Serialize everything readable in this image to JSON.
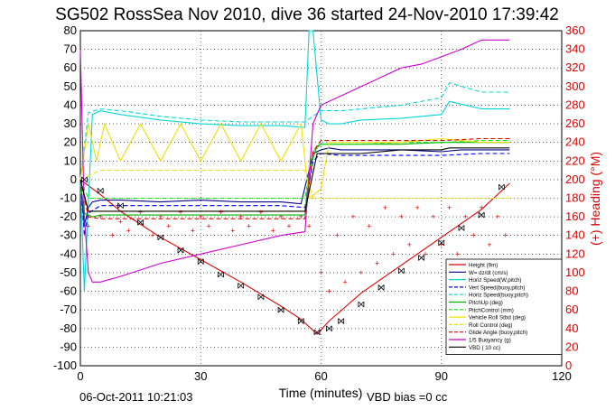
{
  "figure": {
    "title": "SG502 RossSea Nov 2010, dive 36 started 24-Nov-2010 17:39:42",
    "footer_date": "06-Oct-2011 10:21:03",
    "footer_note": "VBD bias =0 cc"
  },
  "chart_data": {
    "type": "line",
    "title": "SG502 RossSea Nov 2010, dive 36 started 24-Nov-2010 17:39:42",
    "xlabel": "Time (minutes)",
    "ylabel": "",
    "y2label": "(+) Heading (°M)",
    "xlim": [
      0,
      120
    ],
    "ylim": [
      -100,
      80
    ],
    "y2lim": [
      0,
      360
    ],
    "xticks": [
      0,
      30,
      60,
      90,
      120
    ],
    "yticks": [
      80,
      70,
      60,
      50,
      40,
      30,
      20,
      10,
      0,
      -10,
      -20,
      -30,
      -40,
      -50,
      -60,
      -70,
      -80,
      -90,
      -100
    ],
    "y2ticks": [
      360,
      340,
      320,
      300,
      280,
      260,
      240,
      220,
      200,
      180,
      160,
      140,
      120,
      100,
      80,
      60,
      40,
      20,
      0
    ],
    "grid": true,
    "legend_position": "bottom-right",
    "series": [
      {
        "name": "Height (9m)",
        "color": "#e00000",
        "style": "solid",
        "x": [
          0,
          5,
          10,
          20,
          30,
          40,
          50,
          55,
          59,
          62,
          70,
          80,
          90,
          100,
          107
        ],
        "y": [
          0,
          -8,
          -17,
          -31,
          -43,
          -55,
          -68,
          -75,
          -83,
          -76,
          -61,
          -46,
          -31,
          -16,
          -2
        ]
      },
      {
        "name": "W= dz/dt (cm/s)",
        "color": "#00008b",
        "style": "solid",
        "x": [
          0,
          1,
          2,
          3,
          5,
          10,
          20,
          30,
          40,
          50,
          55,
          57,
          58,
          60,
          62,
          65,
          70,
          80,
          90,
          95,
          100,
          107
        ],
        "y": [
          0,
          -25,
          -15,
          -12,
          -11,
          -11,
          -12,
          -11,
          -12,
          -12,
          -13,
          5,
          14,
          16,
          17,
          16,
          16,
          16,
          15,
          16,
          16,
          16
        ]
      },
      {
        "name": "Horiz Speed(W,pitch)",
        "color": "#00d8d8",
        "style": "solid",
        "x": [
          0,
          1,
          3,
          5,
          10,
          20,
          30,
          40,
          50,
          56,
          57,
          58,
          60,
          62,
          65,
          70,
          80,
          90,
          92,
          100,
          107
        ],
        "y": [
          0,
          -60,
          35,
          37,
          35,
          32,
          30,
          29,
          29,
          28,
          80,
          80,
          32,
          30,
          30,
          32,
          33,
          35,
          42,
          38,
          38
        ]
      },
      {
        "name": "Vert Speed(buoy,pitch)",
        "color": "#0000ff",
        "style": "dashed",
        "x": [
          0,
          1,
          2,
          5,
          10,
          20,
          30,
          40,
          50,
          56,
          58,
          60,
          65,
          70,
          80,
          90,
          100,
          107
        ],
        "y": [
          0,
          -30,
          -18,
          -14,
          -14,
          -14,
          -14,
          -14,
          -14,
          -15,
          10,
          14,
          13,
          13,
          13,
          13,
          14,
          14
        ]
      },
      {
        "name": "Horiz Speed(buoy,pitch)",
        "color": "#00d8d8",
        "style": "dashed",
        "x": [
          0,
          2,
          5,
          10,
          20,
          30,
          40,
          50,
          56,
          58,
          60,
          65,
          70,
          80,
          90,
          92,
          100,
          107
        ],
        "y": [
          0,
          36,
          38,
          37,
          34,
          32,
          31,
          31,
          31,
          34,
          37,
          37,
          38,
          40,
          44,
          52,
          47,
          47
        ]
      },
      {
        "name": "PitchUp (deg)",
        "color": "#00b000",
        "style": "solid",
        "x": [
          0,
          1,
          3,
          5,
          10,
          20,
          30,
          40,
          50,
          56,
          57,
          59,
          60,
          65,
          70,
          80,
          90,
          100,
          107
        ],
        "y": [
          0,
          -18,
          -20,
          -19,
          -19,
          -19,
          -19,
          -19,
          -19,
          -19,
          5,
          18,
          19,
          19,
          19,
          19,
          20,
          20,
          20
        ]
      },
      {
        "name": "PitchControl (mm)",
        "color": "#00ee00",
        "style": "dashed",
        "x": [
          0,
          2,
          5,
          10,
          20,
          30,
          40,
          50,
          56,
          58,
          60,
          70,
          80,
          90,
          100,
          107
        ],
        "y": [
          0,
          -10,
          -10,
          -10,
          -10,
          -10,
          -10,
          -10,
          -10,
          15,
          19,
          19,
          20,
          20,
          21,
          21
        ]
      },
      {
        "name": "Vehicle Roll Stbd (deg)",
        "color": "#f0e000",
        "style": "solid",
        "x": [
          0,
          2,
          4,
          6,
          10,
          15,
          20,
          25,
          30,
          35,
          40,
          45,
          50,
          55,
          57,
          60,
          62,
          65,
          70,
          80,
          90,
          100,
          107
        ],
        "y": [
          0,
          30,
          10,
          30,
          10,
          30,
          10,
          30,
          10,
          30,
          10,
          30,
          10,
          30,
          -10,
          -5,
          20,
          20,
          20,
          20,
          22,
          20,
          20
        ]
      },
      {
        "name": "Roll Control (deg)",
        "color": "#f0e000",
        "style": "dashed",
        "x": [
          0,
          5,
          10,
          20,
          30,
          40,
          50,
          56,
          58,
          60,
          70,
          80,
          90,
          100,
          107
        ],
        "y": [
          0,
          5,
          5,
          5,
          5,
          5,
          5,
          5,
          -10,
          -10,
          -10,
          -10,
          -10,
          -10,
          -10
        ]
      },
      {
        "name": "Glide Angle (buoy,pitch)",
        "color": "#e00000",
        "style": "dashed",
        "x": [
          0,
          2,
          5,
          10,
          20,
          30,
          40,
          50,
          56,
          58,
          60,
          70,
          80,
          90,
          100,
          107
        ],
        "y": [
          0,
          -20,
          -21,
          -21,
          -21,
          -21,
          -21,
          -21,
          -21,
          15,
          21,
          21,
          21,
          21,
          22,
          22
        ]
      },
      {
        "name": "1/5 Buoyancy (g)",
        "color": "#cc00cc",
        "style": "solid",
        "x": [
          0,
          1,
          2,
          3,
          5,
          10,
          20,
          30,
          40,
          50,
          56,
          58,
          60,
          65,
          70,
          72,
          75,
          80,
          85,
          90,
          95,
          100,
          107
        ],
        "y": [
          70,
          -20,
          -50,
          -55,
          -55,
          -52,
          -45,
          -40,
          -35,
          -30,
          -28,
          30,
          40,
          45,
          50,
          52,
          55,
          60,
          62,
          66,
          70,
          75,
          75
        ]
      },
      {
        "name": "VBD ( 10 cc)",
        "color": "#000000",
        "style": "solid",
        "x": [
          0,
          2,
          5,
          10,
          20,
          30,
          40,
          50,
          56,
          59,
          60,
          70,
          80,
          90,
          92,
          100,
          107
        ],
        "y": [
          0,
          -17,
          -17,
          -17,
          -17,
          -17,
          -17,
          -17,
          -17,
          14,
          14,
          14,
          16,
          16,
          17,
          17,
          17
        ]
      }
    ],
    "heading_series": {
      "name": "Heading",
      "color": "#e00000",
      "axis": "right",
      "x": [
        2,
        5,
        8,
        10,
        12,
        15,
        18,
        20,
        22,
        25,
        28,
        30,
        32,
        35,
        38,
        40,
        42,
        45,
        48,
        50,
        52,
        55,
        57,
        60,
        62,
        64,
        66,
        68,
        70,
        72,
        74,
        76,
        78,
        80,
        82,
        84,
        86,
        88,
        90,
        92,
        94,
        96,
        98,
        100,
        102,
        104,
        106
      ],
      "y": [
        150,
        160,
        140,
        155,
        145,
        165,
        140,
        160,
        150,
        165,
        145,
        160,
        150,
        165,
        145,
        160,
        150,
        165,
        145,
        160,
        150,
        160,
        150,
        100,
        80,
        140,
        90,
        160,
        100,
        150,
        110,
        170,
        120,
        160,
        130,
        170,
        120,
        160,
        130,
        170,
        120,
        160,
        140,
        170,
        130,
        160,
        140
      ]
    },
    "depth_markers": {
      "x": [
        1,
        5,
        10,
        15,
        20,
        25,
        30,
        35,
        40,
        45,
        50,
        55,
        59,
        62,
        65,
        70,
        75,
        80,
        85,
        90,
        95,
        100,
        105
      ],
      "y": [
        0,
        -6,
        -14,
        -23,
        -31,
        -38,
        -44,
        -51,
        -57,
        -63,
        -70,
        -76,
        -82,
        -80,
        -76,
        -67,
        -58,
        -49,
        -42,
        -34,
        -26,
        -19,
        -4
      ]
    }
  }
}
